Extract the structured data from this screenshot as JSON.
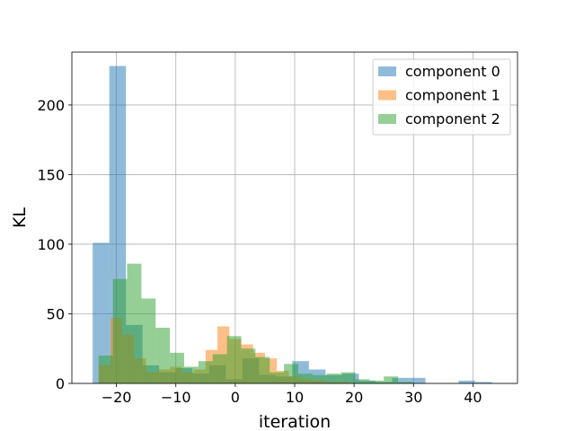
{
  "chart_data": {
    "type": "bar",
    "subtype": "histogram",
    "xlabel": "iteration",
    "ylabel": "KL",
    "xlim": [
      -27.5,
      47.5
    ],
    "ylim": [
      0,
      238
    ],
    "xticks": [
      -20,
      -10,
      0,
      10,
      20,
      30,
      40
    ],
    "xtick_labels": [
      "−20",
      "−10",
      "0",
      "10",
      "20",
      "30",
      "40"
    ],
    "yticks": [
      0,
      50,
      100,
      150,
      200
    ],
    "ytick_labels": [
      "0",
      "50",
      "100",
      "150",
      "200"
    ],
    "grid": true,
    "legend_position": "top-right",
    "series": [
      {
        "name": "component 0",
        "color": "#1f77b4",
        "opacity": 0.5,
        "bin_edges": [
          -24,
          -21.2,
          -18.4,
          -15.6,
          -12.8,
          -10,
          -7.2,
          -4.4,
          -1.6,
          1.2,
          4,
          6.8,
          9.6,
          12.4,
          15.2,
          18,
          20.8,
          23.6,
          26.4,
          29.2,
          32,
          34.8,
          37.6,
          40.4,
          43.2,
          46
        ],
        "counts": [
          101,
          228,
          42,
          13,
          8,
          11,
          7,
          13,
          3,
          18,
          6,
          5,
          16,
          10,
          6,
          7,
          2,
          1,
          4,
          4,
          0,
          0,
          2,
          1,
          0
        ]
      },
      {
        "name": "component 1",
        "color": "#ff7f0e",
        "opacity": 0.5,
        "bin_edges": [
          -23,
          -21,
          -19,
          -17,
          -15,
          -13,
          -11,
          -9,
          -7,
          -5,
          -3,
          -1,
          1,
          3,
          5,
          7,
          9,
          11,
          13,
          15,
          17,
          19,
          21,
          23,
          25,
          27,
          29
        ],
        "counts": [
          13,
          47,
          35,
          18,
          8,
          10,
          12,
          8,
          10,
          24,
          41,
          32,
          28,
          22,
          18,
          9,
          5,
          3,
          2,
          1,
          1,
          0,
          0,
          0,
          0,
          0
        ]
      },
      {
        "name": "component 2",
        "color": "#2ca02c",
        "opacity": 0.5,
        "bin_edges": [
          -23,
          -20.6,
          -18.2,
          -15.8,
          -13.4,
          -11,
          -8.6,
          -6.2,
          -3.8,
          -1.4,
          1,
          3.4,
          5.8,
          8.2,
          10.6,
          13,
          15.4,
          17.8,
          20.2,
          22.6,
          25,
          27.4,
          29.8
        ],
        "counts": [
          20,
          75,
          86,
          61,
          40,
          22,
          12,
          16,
          21,
          34,
          25,
          19,
          8,
          14,
          7,
          6,
          7,
          8,
          3,
          2,
          5,
          1
        ]
      }
    ]
  }
}
